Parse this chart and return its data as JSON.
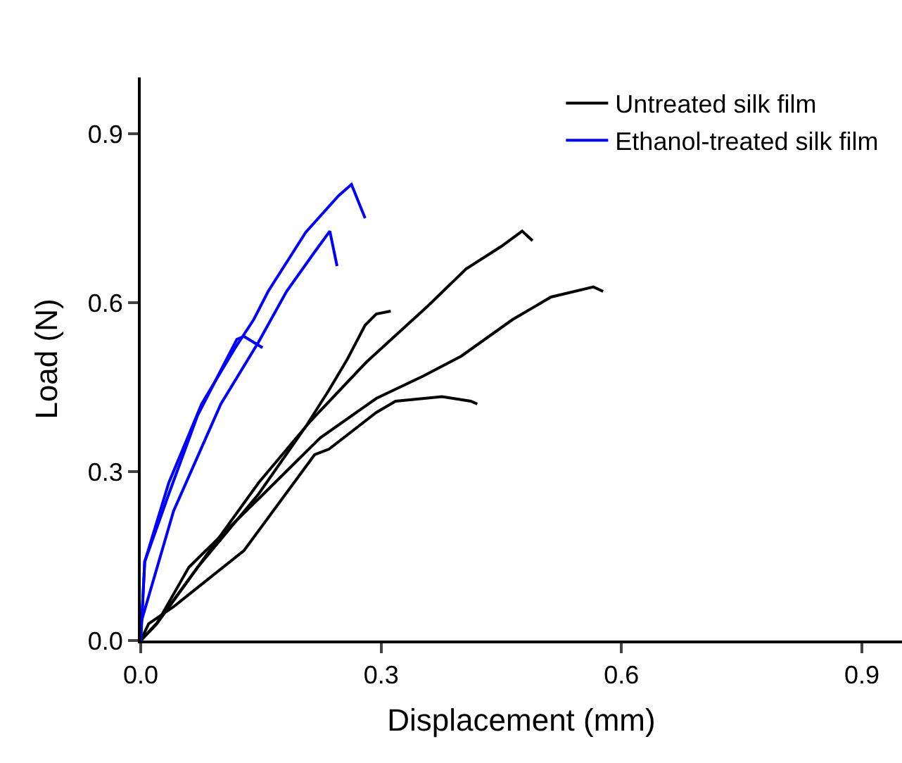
{
  "chart_data": {
    "type": "line",
    "xlabel": "Displacement (mm)",
    "ylabel": "Load (N)",
    "xlim": [
      0,
      0.95
    ],
    "ylim": [
      0,
      1.0
    ],
    "xticks": [
      {
        "value": 0,
        "label": "0.0"
      },
      0.3,
      0.6,
      0.9
    ],
    "yticks": [
      {
        "value": 0,
        "label": "0.0"
      },
      0.3,
      0.6,
      0.9
    ],
    "legend": "top right",
    "marker": "none",
    "line_style": "solid",
    "series": [
      {
        "name": "Untreated silk film",
        "color": "#000000",
        "x": [
          0,
          0.02,
          0.071,
          0.147,
          0.206,
          0.235,
          0.258,
          0.28,
          0.294,
          0.312
        ],
        "values": [
          0,
          0.03,
          0.13,
          0.26,
          0.38,
          0.445,
          0.5,
          0.56,
          0.58,
          0.585
        ]
      },
      {
        "color": "#000000",
        "x": [
          0,
          0.02,
          0.071,
          0.147,
          0.212,
          0.282,
          0.359,
          0.406,
          0.45,
          0.476,
          0.489
        ],
        "values": [
          0,
          0.03,
          0.13,
          0.28,
          0.39,
          0.495,
          0.595,
          0.66,
          0.7,
          0.727,
          0.71
        ]
      },
      {
        "color": "#000000",
        "x": [
          0,
          0.02,
          0.06,
          0.153,
          0.224,
          0.294,
          0.353,
          0.4,
          0.464,
          0.512,
          0.565,
          0.577
        ],
        "values": [
          0,
          0.03,
          0.13,
          0.26,
          0.36,
          0.43,
          0.47,
          0.505,
          0.57,
          0.61,
          0.628,
          0.62
        ]
      },
      {
        "color": "#000000",
        "x": [
          0,
          0.01,
          0.041,
          0.129,
          0.217,
          0.235,
          0.294,
          0.318,
          0.376,
          0.412,
          0.42
        ],
        "values": [
          0,
          0.03,
          0.06,
          0.16,
          0.33,
          0.34,
          0.405,
          0.425,
          0.433,
          0.425,
          0.42
        ]
      },
      {
        "name": "Ethanol-treated silk film",
        "color": "#0000ff",
        "x": [
          0,
          0.005,
          0.035,
          0.076,
          0.118,
          0.141,
          0.159,
          0.206,
          0.247,
          0.263,
          0.28
        ],
        "values": [
          0,
          0.14,
          0.28,
          0.42,
          0.52,
          0.57,
          0.62,
          0.725,
          0.79,
          0.81,
          0.75
        ]
      },
      {
        "color": "#0000ff",
        "x": [
          0,
          0.041,
          0.1,
          0.147,
          0.182,
          0.217,
          0.236,
          0.245
        ],
        "values": [
          0.03,
          0.23,
          0.42,
          0.53,
          0.62,
          0.69,
          0.727,
          0.665
        ]
      },
      {
        "color": "#0000ff",
        "x": [
          0,
          0.005,
          0.035,
          0.071,
          0.1,
          0.12,
          0.129,
          0.152
        ],
        "values": [
          0,
          0.14,
          0.26,
          0.4,
          0.48,
          0.535,
          0.54,
          0.52
        ]
      }
    ]
  }
}
